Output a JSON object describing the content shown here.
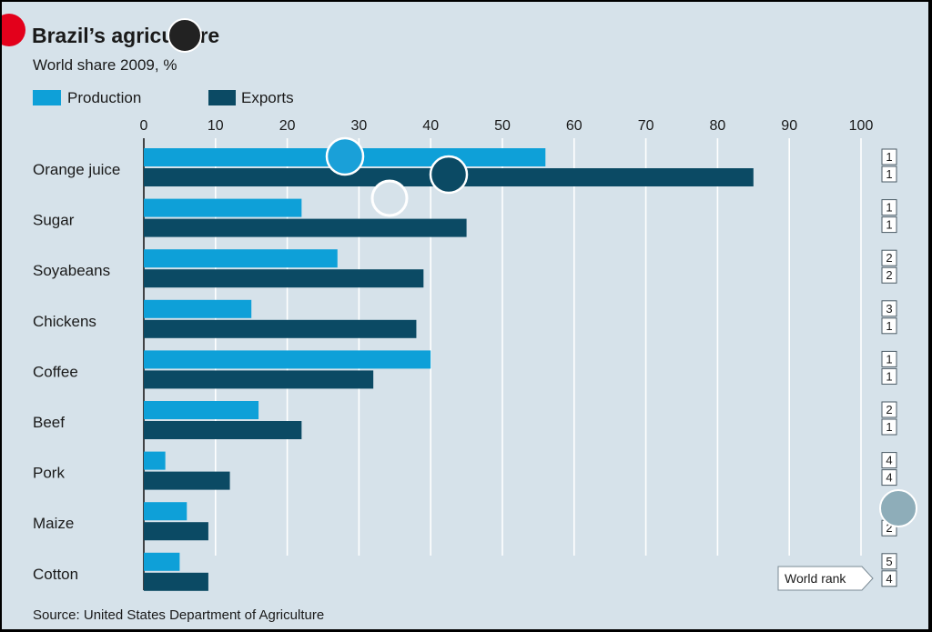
{
  "colors": {
    "background": "#d6e2ea",
    "production": "#0ea0d8",
    "exports": "#0b4a64",
    "gridline": "#ffffff",
    "text": "#1a1a1a"
  },
  "decorations": [
    {
      "kind": "red-dot",
      "color": "#e3001b"
    },
    {
      "kind": "dark-circle",
      "color": "#222222"
    },
    {
      "kind": "blue-circle",
      "color": "#1aa0d8"
    },
    {
      "kind": "navy-circle",
      "color": "#0b4a64"
    },
    {
      "kind": "white-ring",
      "color": "#d6e2ea"
    },
    {
      "kind": "grey-circle",
      "color": "#8eadb9"
    }
  ],
  "chart_data": {
    "type": "bar",
    "orientation": "horizontal",
    "title": "Brazil’s agriculture",
    "subtitle": "World share 2009, %",
    "source": "Source: United States Department of Agriculture",
    "xlim": [
      0,
      100
    ],
    "xticks": [
      0,
      10,
      20,
      30,
      40,
      50,
      60,
      70,
      80,
      90,
      100
    ],
    "xtick_labels": [
      "0",
      "10",
      "20",
      "30",
      "40",
      "50",
      "60",
      "70",
      "80",
      "90",
      "100"
    ],
    "grid": true,
    "legend_position": "top-left",
    "categories": [
      "Orange juice",
      "Sugar",
      "Soyabeans",
      "Chickens",
      "Coffee",
      "Beef",
      "Pork",
      "Maize",
      "Cotton"
    ],
    "series": [
      {
        "name": "Production",
        "values": [
          56,
          22,
          27,
          15,
          40,
          16,
          3,
          6,
          5
        ]
      },
      {
        "name": "Exports",
        "values": [
          85,
          45,
          39,
          38,
          32,
          22,
          12,
          9,
          9
        ]
      }
    ],
    "world_rank": {
      "label": "World rank",
      "production": [
        "1",
        "1",
        "2",
        "3",
        "1",
        "2",
        "4",
        "",
        "5"
      ],
      "exports": [
        "1",
        "1",
        "2",
        "1",
        "1",
        "1",
        "4",
        "2",
        "4"
      ]
    }
  }
}
